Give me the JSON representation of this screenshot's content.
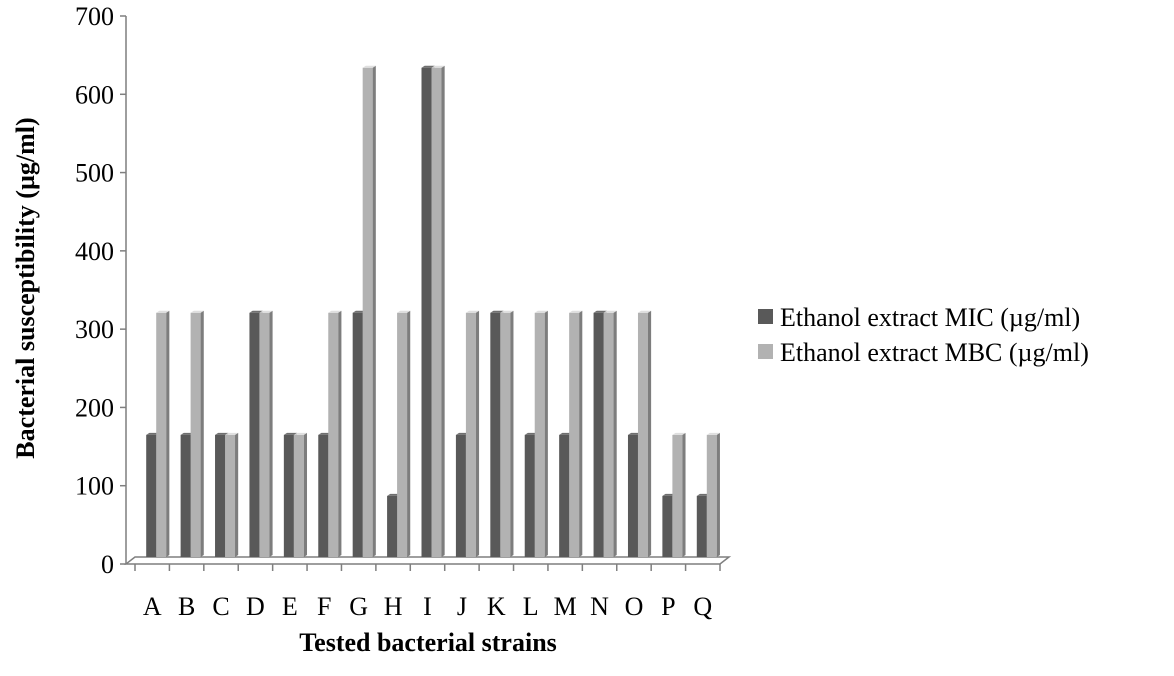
{
  "chart_data": {
    "type": "bar",
    "style": "3d-clustered-column",
    "title": "",
    "xlabel": "Tested bacterial strains",
    "ylabel": "Bacterial susceptibility (µg/ml)",
    "ylim": [
      0,
      700
    ],
    "yticks": [
      0,
      100,
      200,
      300,
      400,
      500,
      600,
      700
    ],
    "grid": false,
    "legend_position": "right",
    "categories": [
      "A",
      "B",
      "C",
      "D",
      "E",
      "F",
      "G",
      "H",
      "I",
      "J",
      "K",
      "L",
      "M",
      "N",
      "O",
      "P",
      "Q"
    ],
    "series": [
      {
        "name": "Ethanol extract MIC (µg/ml)",
        "color": "#595959",
        "values": [
          156,
          156,
          156,
          312,
          156,
          156,
          312,
          78,
          625,
          156,
          312,
          156,
          156,
          312,
          156,
          78,
          78
        ]
      },
      {
        "name": "Ethanol extract MBC (µg/ml)",
        "color": "#b2b2b2",
        "values": [
          312,
          312,
          156,
          312,
          156,
          312,
          625,
          312,
          625,
          312,
          312,
          312,
          312,
          312,
          312,
          156,
          156
        ]
      }
    ]
  }
}
